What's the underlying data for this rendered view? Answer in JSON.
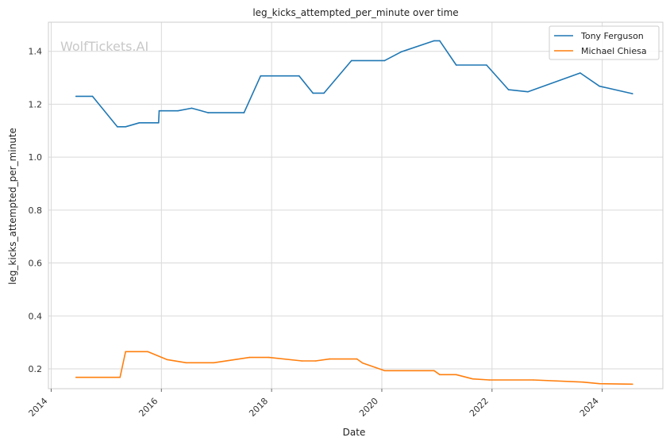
{
  "chart_data": {
    "type": "line",
    "title": "leg_kicks_attempted_per_minute over time",
    "xlabel": "Date",
    "ylabel": "leg_kicks_attempted_per_minute",
    "watermark": "WolfTickets.AI",
    "x_ticks": [
      "2014",
      "2016",
      "2018",
      "2020",
      "2022",
      "2024"
    ],
    "y_ticks": [
      "0.2",
      "0.4",
      "0.6",
      "0.8",
      "1.0",
      "1.2",
      "1.4"
    ],
    "xlim": [
      2013.95,
      2025.1
    ],
    "ylim": [
      0.125,
      1.51
    ],
    "grid": true,
    "legend_position": "top-right",
    "series": [
      {
        "name": "Tony Ferguson",
        "color": "#1f77b4",
        "points": [
          [
            2014.45,
            1.23
          ],
          [
            2014.75,
            1.23
          ],
          [
            2015.2,
            1.115
          ],
          [
            2015.35,
            1.115
          ],
          [
            2015.6,
            1.13
          ],
          [
            2015.95,
            1.13
          ],
          [
            2015.96,
            1.175
          ],
          [
            2016.3,
            1.175
          ],
          [
            2016.55,
            1.185
          ],
          [
            2016.85,
            1.168
          ],
          [
            2017.5,
            1.168
          ],
          [
            2017.8,
            1.307
          ],
          [
            2018.5,
            1.307
          ],
          [
            2018.75,
            1.242
          ],
          [
            2018.95,
            1.242
          ],
          [
            2019.45,
            1.365
          ],
          [
            2020.05,
            1.365
          ],
          [
            2020.35,
            1.398
          ],
          [
            2020.95,
            1.44
          ],
          [
            2021.05,
            1.44
          ],
          [
            2021.35,
            1.348
          ],
          [
            2021.9,
            1.348
          ],
          [
            2022.3,
            1.255
          ],
          [
            2022.65,
            1.247
          ],
          [
            2023.6,
            1.318
          ],
          [
            2023.95,
            1.268
          ],
          [
            2024.55,
            1.24
          ]
        ]
      },
      {
        "name": "Michael Chiesa",
        "color": "#ff7f0e",
        "points": [
          [
            2014.45,
            0.168
          ],
          [
            2015.25,
            0.168
          ],
          [
            2015.35,
            0.265
          ],
          [
            2015.75,
            0.265
          ],
          [
            2016.1,
            0.235
          ],
          [
            2016.45,
            0.223
          ],
          [
            2016.95,
            0.223
          ],
          [
            2017.6,
            0.243
          ],
          [
            2017.95,
            0.243
          ],
          [
            2018.55,
            0.23
          ],
          [
            2018.8,
            0.23
          ],
          [
            2019.05,
            0.237
          ],
          [
            2019.55,
            0.237
          ],
          [
            2019.65,
            0.222
          ],
          [
            2020.05,
            0.193
          ],
          [
            2020.95,
            0.193
          ],
          [
            2021.05,
            0.178
          ],
          [
            2021.35,
            0.178
          ],
          [
            2021.65,
            0.162
          ],
          [
            2021.95,
            0.158
          ],
          [
            2022.75,
            0.158
          ],
          [
            2023.65,
            0.15
          ],
          [
            2023.95,
            0.144
          ],
          [
            2024.55,
            0.142
          ]
        ]
      }
    ]
  }
}
